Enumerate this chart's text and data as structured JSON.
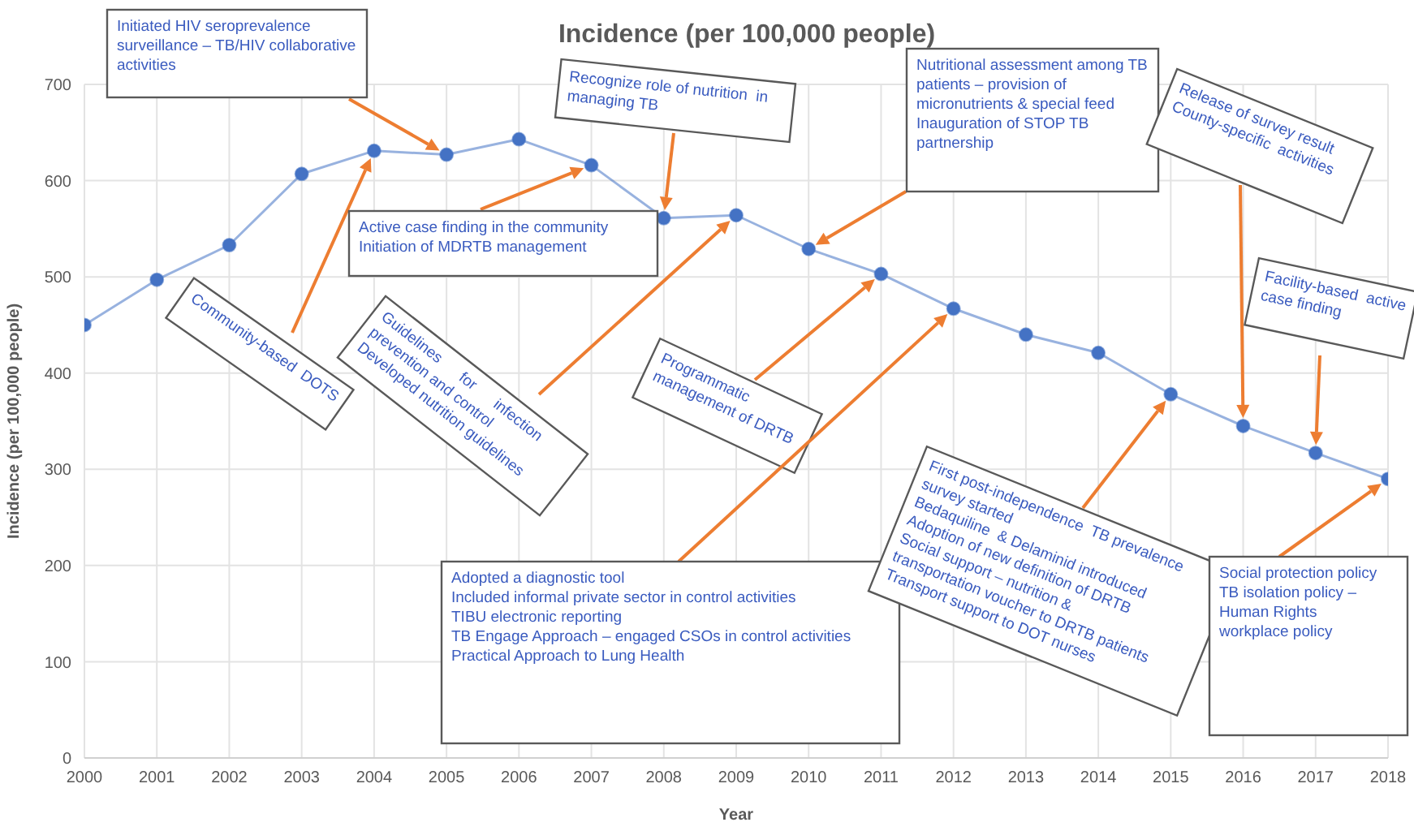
{
  "chart_data": {
    "type": "line",
    "title": "Incidence (per 100,000 people)",
    "xlabel": "Year",
    "ylabel": "Incidence (per 100,000 people)",
    "x": [
      2000,
      2001,
      2002,
      2003,
      2004,
      2005,
      2006,
      2007,
      2008,
      2009,
      2010,
      2011,
      2012,
      2013,
      2014,
      2015,
      2016,
      2017,
      2018
    ],
    "series": [
      {
        "color": "#4472c4",
        "values": [
          450,
          497,
          533,
          607,
          631,
          627,
          643,
          616,
          561,
          564,
          529,
          503,
          467,
          440,
          421,
          378,
          345,
          317,
          290
        ]
      }
    ],
    "xlim": [
      2000,
      2018
    ],
    "xticks": [
      2000,
      2001,
      2002,
      2003,
      2004,
      2005,
      2006,
      2007,
      2008,
      2009,
      2010,
      2011,
      2012,
      2013,
      2014,
      2015,
      2016,
      2017,
      2018
    ],
    "ylim": [
      0,
      700
    ],
    "yticks": [
      0,
      100,
      200,
      300,
      400,
      500,
      600,
      700
    ],
    "grid": true,
    "marker": "circle",
    "annotations": [
      "Initiated HIV seroprevalence\nsurveillance – TB/HIV collaborative\nactivities",
      "Community-based  DOTS",
      "Active case finding in the community\nInitiation of MDRTB management",
      "Recognize role of nutrition  in\nmanaging TB",
      "Guidelines      for      infection\nprevention and control\nDeveloped nutrition guidelines",
      "Nutritional assessment among TB\npatients – provision of\nmicronutrients & special feed\nInauguration of STOP TB\npartnership",
      "Programmatic\nmanagement of DRTB",
      "Adopted a diagnostic tool\nIncluded informal private sector in control activities\nTIBU electronic reporting\nTB Engage Approach – engaged CSOs in control activities\nPractical Approach to Lung Health",
      "First post-independence  TB prevalence\nsurvey started\nBedaquiline  & Delaminid introduced\nAdoption of new definition of DRTB\nSocial support – nutrition &\ntransportation voucher to DRTB patients\nTransport support to DOT nurses",
      "Release of survey result\nCounty-specific  activities",
      "Facility-based  active\ncase finding",
      "Social protection policy\nTB isolation policy –\nHuman Rights\nworkplace policy"
    ]
  }
}
